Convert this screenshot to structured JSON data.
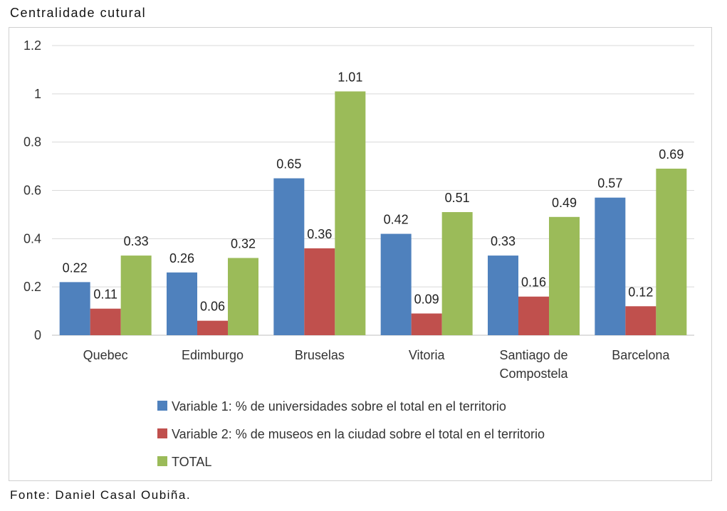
{
  "page": {
    "title": "Centralidade cutural",
    "source": "Fonte: Daniel Casal Oubiña."
  },
  "chart_data": {
    "type": "bar",
    "title": "",
    "xlabel": "",
    "ylabel": "",
    "categories": [
      "Quebec",
      "Edimburgo",
      "Bruselas",
      "Vitoria",
      "Santiago de Compostela",
      "Barcelona"
    ],
    "category_lines": [
      [
        "Quebec"
      ],
      [
        "Edimburgo"
      ],
      [
        "Bruselas"
      ],
      [
        "Vitoria"
      ],
      [
        "Santiago de",
        "Compostela"
      ],
      [
        "Barcelona"
      ]
    ],
    "series": [
      {
        "name": "Variable 1: % de universidades sobre el total en el territorio",
        "color": "#4F81BD",
        "values": [
          0.22,
          0.26,
          0.65,
          0.42,
          0.33,
          0.57
        ]
      },
      {
        "name": "Variable 2: % de museos en la ciudad sobre el total en el territorio",
        "color": "#C0504D",
        "values": [
          0.11,
          0.06,
          0.36,
          0.09,
          0.16,
          0.12
        ]
      },
      {
        "name": "TOTAL",
        "color": "#9BBB59",
        "values": [
          0.33,
          0.32,
          1.01,
          0.51,
          0.49,
          0.69
        ]
      }
    ],
    "ylim": [
      0,
      1.2
    ],
    "yticks": [
      0,
      0.2,
      0.4,
      0.6,
      0.8,
      1,
      1.2
    ],
    "ytick_labels": [
      "0",
      "0.2",
      "0.4",
      "0.6",
      "0.8",
      "1",
      "1.2"
    ],
    "data_labels": true,
    "grid": "horizontal",
    "legend_position": "bottom"
  }
}
